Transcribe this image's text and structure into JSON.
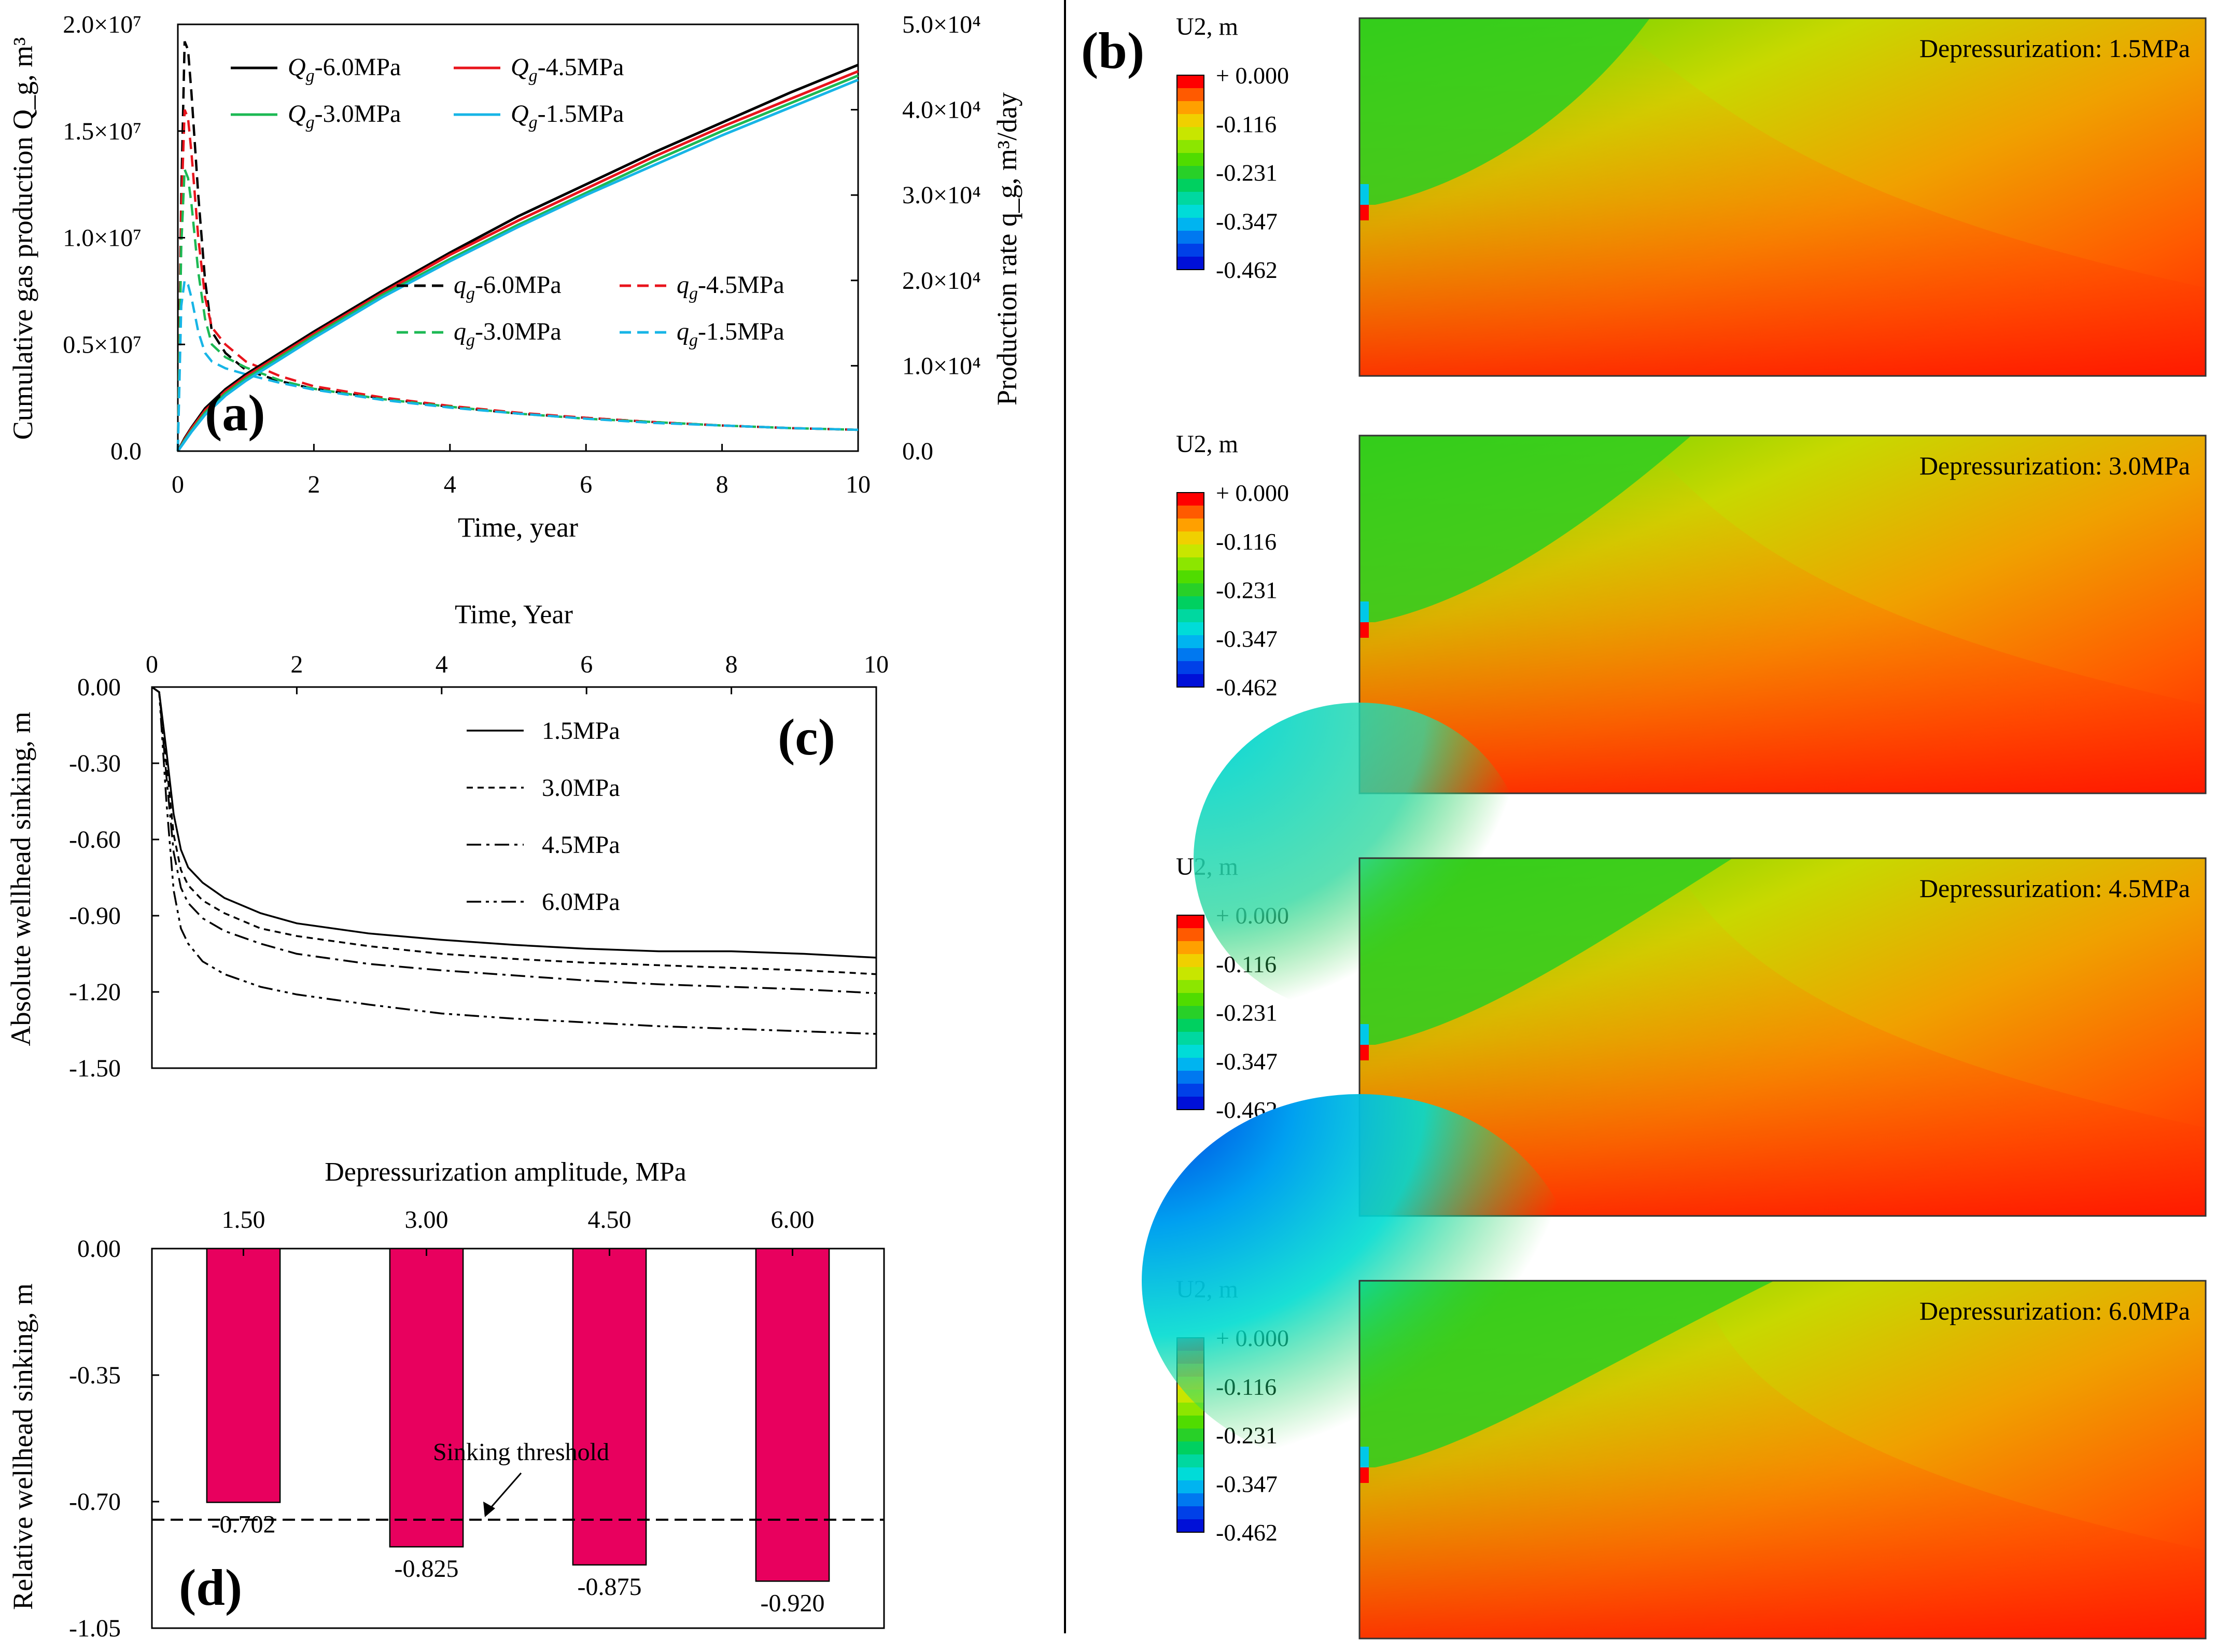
{
  "chart_data": [
    {
      "id": "a",
      "type": "line",
      "panel_label": "(a)",
      "xlabel": "Time, year",
      "ylabel_left": "Cumulative gas production Q_g, m³",
      "ylabel_right": "Production rate q_g, m³/day",
      "xlim": [
        0,
        10
      ],
      "ylim_left": [
        0,
        20000000
      ],
      "ylim_right": [
        0,
        50000
      ],
      "x_ticks": [
        "0",
        "2",
        "4",
        "6",
        "8",
        "10"
      ],
      "y_left_ticks": [
        "0.0",
        "0.5×10⁷",
        "1.0×10⁷",
        "1.5×10⁷",
        "2.0×10⁷"
      ],
      "y_right_ticks": [
        "0.0",
        "1.0×10⁴",
        "2.0×10⁴",
        "3.0×10⁴",
        "4.0×10⁴",
        "5.0×10⁴"
      ],
      "legend_cumulative": [
        "Q_g-6.0MPa",
        "Q_g-4.5MPa",
        "Q_g-3.0MPa",
        "Q_g-1.5MPa"
      ],
      "legend_rate": [
        "q_g-6.0MPa",
        "q_g-4.5MPa",
        "q_g-3.0MPa",
        "q_g-1.5MPa"
      ],
      "colors": {
        "6.0MPa": "#000000",
        "4.5MPa": "#e8141c",
        "3.0MPa": "#1db954",
        "1.5MPa": "#17b5e6"
      },
      "series_cumulative": [
        {
          "name": "Q_g-6.0MPa",
          "x": [
            0,
            0.1,
            0.2,
            0.4,
            0.7,
            1,
            1.5,
            2,
            3,
            4,
            5,
            6,
            7,
            8,
            9,
            10
          ],
          "y": [
            0,
            600000,
            1100000,
            2000000,
            2900000,
            3600000,
            4600000,
            5600000,
            7500000,
            9300000,
            11000000,
            12500000,
            14000000,
            15400000,
            16800000,
            18100000
          ]
        },
        {
          "name": "Q_g-4.5MPa",
          "x": [
            0,
            0.1,
            0.2,
            0.4,
            0.7,
            1,
            1.5,
            2,
            3,
            4,
            5,
            6,
            7,
            8,
            9,
            10
          ],
          "y": [
            0,
            550000,
            1050000,
            1900000,
            2800000,
            3500000,
            4500000,
            5500000,
            7400000,
            9200000,
            10800000,
            12300000,
            13800000,
            15200000,
            16500000,
            17800000
          ]
        },
        {
          "name": "Q_g-3.0MPa",
          "x": [
            0,
            0.1,
            0.2,
            0.4,
            0.7,
            1,
            1.5,
            2,
            3,
            4,
            5,
            6,
            7,
            8,
            9,
            10
          ],
          "y": [
            0,
            500000,
            950000,
            1800000,
            2700000,
            3400000,
            4400000,
            5400000,
            7300000,
            9000000,
            10600000,
            12100000,
            13600000,
            15000000,
            16300000,
            17600000
          ]
        },
        {
          "name": "Q_g-1.5MPa",
          "x": [
            0,
            0.1,
            0.2,
            0.4,
            0.7,
            1,
            1.5,
            2,
            3,
            4,
            5,
            6,
            7,
            8,
            9,
            10
          ],
          "y": [
            0,
            450000,
            900000,
            1700000,
            2600000,
            3300000,
            4300000,
            5300000,
            7200000,
            8900000,
            10500000,
            12000000,
            13400000,
            14800000,
            16100000,
            17400000
          ]
        }
      ],
      "series_rate": [
        {
          "name": "q_g-6.0MPa",
          "x": [
            0,
            0.05,
            0.1,
            0.15,
            0.2,
            0.3,
            0.4,
            0.5,
            0.7,
            1,
            1.5,
            2,
            3,
            4,
            5,
            6,
            7,
            8,
            9,
            10
          ],
          "y": [
            0,
            30000,
            48000,
            47000,
            42000,
            30000,
            20000,
            14000,
            11500,
            9500,
            8200,
            7300,
            6200,
            5200,
            4400,
            3900,
            3400,
            3000,
            2700,
            2500
          ]
        },
        {
          "name": "q_g-4.5MPa",
          "x": [
            0,
            0.05,
            0.1,
            0.15,
            0.2,
            0.3,
            0.4,
            0.5,
            0.7,
            1,
            1.5,
            2,
            3,
            4,
            5,
            6,
            7,
            8,
            9,
            10
          ],
          "y": [
            0,
            28000,
            40000,
            39000,
            35000,
            25000,
            18000,
            14500,
            12500,
            10500,
            8800,
            7600,
            6300,
            5300,
            4500,
            3900,
            3400,
            3000,
            2700,
            2500
          ]
        },
        {
          "name": "q_g-3.0MPa",
          "x": [
            0,
            0.05,
            0.1,
            0.15,
            0.2,
            0.3,
            0.4,
            0.5,
            0.7,
            1,
            1.5,
            2,
            3,
            4,
            5,
            6,
            7,
            8,
            9,
            10
          ],
          "y": [
            0,
            24000,
            33000,
            32000,
            29000,
            21000,
            15500,
            12500,
            11000,
            9800,
            8300,
            7300,
            6100,
            5200,
            4400,
            3800,
            3400,
            3000,
            2700,
            2500
          ]
        },
        {
          "name": "q_g-1.5MPa",
          "x": [
            0,
            0.05,
            0.1,
            0.15,
            0.2,
            0.3,
            0.4,
            0.5,
            0.7,
            1,
            1.5,
            2,
            3,
            4,
            5,
            6,
            7,
            8,
            9,
            10
          ],
          "y": [
            0,
            17000,
            20000,
            19500,
            18000,
            14000,
            11500,
            10500,
            9700,
            9000,
            8000,
            7200,
            6000,
            5100,
            4400,
            3800,
            3300,
            3000,
            2700,
            2500
          ]
        }
      ]
    },
    {
      "id": "c",
      "type": "line",
      "panel_label": "(c)",
      "title_top": "Time, Year",
      "ylabel": "Absolute wellhead sinking, m",
      "xlim": [
        0,
        10
      ],
      "ylim": [
        -1.5,
        0
      ],
      "x_ticks": [
        "0",
        "2",
        "4",
        "6",
        "8",
        "10"
      ],
      "y_ticks": [
        "0.00",
        "-0.30",
        "-0.60",
        "-0.90",
        "-1.20",
        "-1.50"
      ],
      "series": [
        {
          "name": "1.5MPa",
          "style": "solid",
          "x": [
            0,
            0.1,
            0.2,
            0.3,
            0.4,
            0.5,
            0.7,
            1,
            1.5,
            2,
            3,
            4,
            5,
            6,
            7,
            8,
            9,
            10
          ],
          "y": [
            0,
            -0.02,
            -0.25,
            -0.5,
            -0.64,
            -0.71,
            -0.77,
            -0.83,
            -0.89,
            -0.93,
            -0.97,
            -0.995,
            -1.015,
            -1.03,
            -1.04,
            -1.04,
            -1.05,
            -1.065
          ]
        },
        {
          "name": "3.0MPa",
          "style": "dashed",
          "x": [
            0,
            0.1,
            0.2,
            0.3,
            0.4,
            0.5,
            0.7,
            1,
            1.5,
            2,
            3,
            4,
            5,
            6,
            7,
            8,
            9,
            10
          ],
          "y": [
            0,
            -0.02,
            -0.3,
            -0.58,
            -0.72,
            -0.78,
            -0.84,
            -0.89,
            -0.95,
            -0.98,
            -1.02,
            -1.05,
            -1.07,
            -1.085,
            -1.095,
            -1.105,
            -1.115,
            -1.13
          ]
        },
        {
          "name": "4.5MPa",
          "style": "dashdot",
          "x": [
            0,
            0.1,
            0.2,
            0.3,
            0.4,
            0.5,
            0.7,
            1,
            1.5,
            2,
            3,
            4,
            5,
            6,
            7,
            8,
            9,
            10
          ],
          "y": [
            0,
            -0.02,
            -0.35,
            -0.65,
            -0.79,
            -0.85,
            -0.91,
            -0.96,
            -1.01,
            -1.05,
            -1.09,
            -1.115,
            -1.135,
            -1.155,
            -1.17,
            -1.18,
            -1.19,
            -1.205
          ]
        },
        {
          "name": "6.0MPa",
          "style": "dashdotdot",
          "x": [
            0,
            0.1,
            0.2,
            0.3,
            0.4,
            0.5,
            0.7,
            1,
            1.5,
            2,
            3,
            4,
            5,
            6,
            7,
            8,
            9,
            10
          ],
          "y": [
            0,
            -0.02,
            -0.45,
            -0.8,
            -0.95,
            -1.01,
            -1.08,
            -1.13,
            -1.18,
            -1.21,
            -1.25,
            -1.285,
            -1.305,
            -1.32,
            -1.335,
            -1.345,
            -1.355,
            -1.365
          ]
        }
      ]
    },
    {
      "id": "d",
      "type": "bar",
      "panel_label": "(d)",
      "title_top": "Depressurization amplitude, MPa",
      "ylabel": "Relative wellhead sinking, m",
      "categories": [
        "1.50",
        "3.00",
        "4.50",
        "6.00"
      ],
      "values": [
        -0.702,
        -0.825,
        -0.875,
        -0.92
      ],
      "value_labels": [
        "-0.702",
        "-0.825",
        "-0.875",
        "-0.920"
      ],
      "ylim": [
        -1.05,
        0
      ],
      "y_ticks": [
        "0.00",
        "-0.35",
        "-0.70",
        "-1.05"
      ],
      "bar_color": "#e8005e",
      "threshold_value": -0.75,
      "threshold_label": "Sinking threshold"
    }
  ],
  "panel_b": {
    "label": "(b)",
    "legend_title": "U2, m",
    "colorbar_labels": [
      "+ 0.000",
      "-0.116",
      "-0.231",
      "-0.347",
      "-0.462"
    ],
    "colorbar_colors": [
      "#ff0000",
      "#ff5a00",
      "#ffa000",
      "#f0d000",
      "#c8e600",
      "#8ce600",
      "#50dc00",
      "#28d028",
      "#00d060",
      "#00d8a0",
      "#00dcd8",
      "#00b4f0",
      "#0078f0",
      "#0040e8",
      "#0010d8"
    ],
    "maps": [
      {
        "title": "Depressurization: 1.5MPa"
      },
      {
        "title": "Depressurization: 3.0MPa"
      },
      {
        "title": "Depressurization: 4.5MPa"
      },
      {
        "title": "Depressurization: 6.0MPa"
      }
    ]
  }
}
